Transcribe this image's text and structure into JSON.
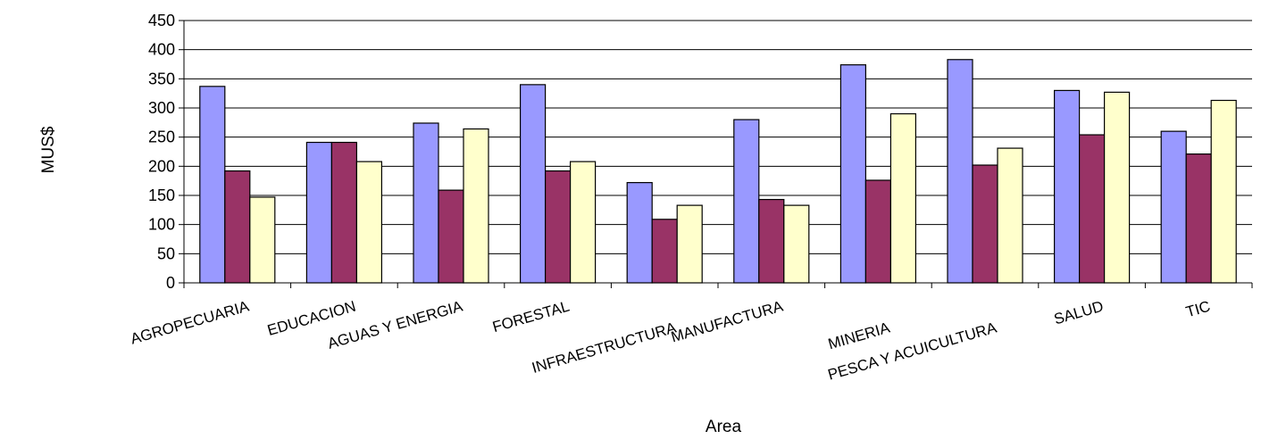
{
  "chart_data": {
    "type": "bar",
    "title": "",
    "xlabel": "Area",
    "ylabel": "MUS$",
    "ylim": [
      0,
      450
    ],
    "yticks": [
      0,
      50,
      100,
      150,
      200,
      250,
      300,
      350,
      400,
      450
    ],
    "grid": true,
    "legend": "none",
    "categories": [
      "AGROPECUARIA",
      "EDUCACION",
      "AGUAS Y ENERGIA",
      "FORESTAL",
      "INFRAESTRUCTURA",
      "MANUFACTURA",
      "MINERIA",
      "PESCA Y ACUICULTURA",
      "SALUD",
      "TIC"
    ],
    "series": [
      {
        "color": "#9999ff",
        "values": [
          337,
          241,
          274,
          340,
          172,
          280,
          374,
          383,
          330,
          260
        ]
      },
      {
        "color": "#993366",
        "values": [
          192,
          241,
          159,
          192,
          109,
          143,
          176,
          202,
          254,
          221
        ]
      },
      {
        "color": "#ffffcc",
        "values": [
          147,
          208,
          264,
          208,
          133,
          133,
          290,
          231,
          327,
          313
        ]
      }
    ]
  }
}
